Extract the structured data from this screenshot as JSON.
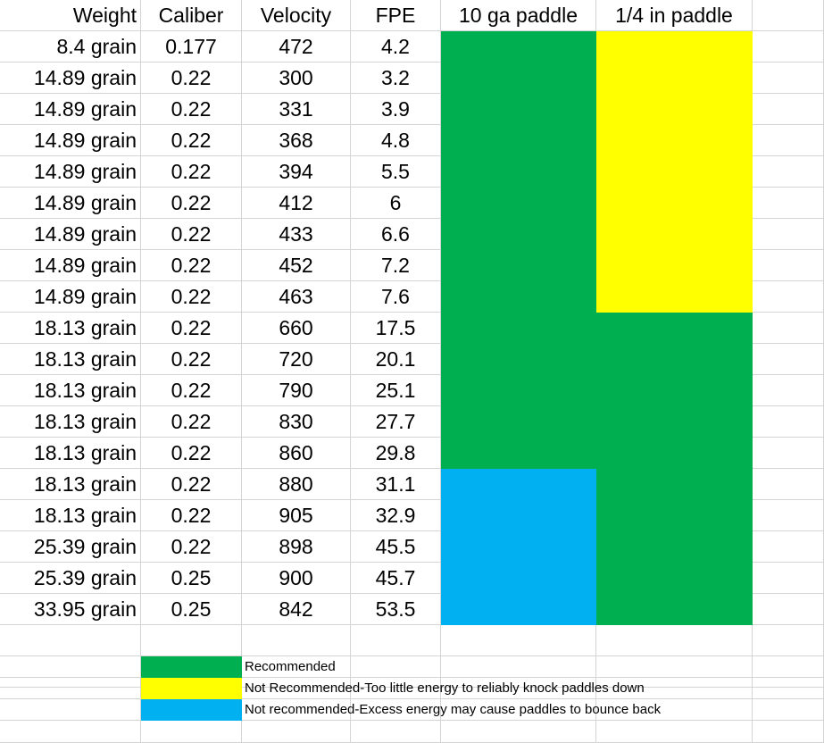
{
  "colors": {
    "green": "#00b050",
    "yellow": "#ffff00",
    "blue": "#00b0f0",
    "gridline": "#d4d4d4"
  },
  "headers": [
    "Weight",
    "Caliber",
    "Velocity",
    "FPE",
    "10 ga paddle",
    "1/4 in paddle"
  ],
  "rows": [
    {
      "weight": "8.4 grain",
      "caliber": "0.177",
      "velocity": "472",
      "fpe": "4.2",
      "ga10": "green",
      "in14": "yellow"
    },
    {
      "weight": "14.89 grain",
      "caliber": "0.22",
      "velocity": "300",
      "fpe": "3.2",
      "ga10": "green",
      "in14": "yellow"
    },
    {
      "weight": "14.89 grain",
      "caliber": "0.22",
      "velocity": "331",
      "fpe": "3.9",
      "ga10": "green",
      "in14": "yellow"
    },
    {
      "weight": "14.89 grain",
      "caliber": "0.22",
      "velocity": "368",
      "fpe": "4.8",
      "ga10": "green",
      "in14": "yellow"
    },
    {
      "weight": "14.89 grain",
      "caliber": "0.22",
      "velocity": "394",
      "fpe": "5.5",
      "ga10": "green",
      "in14": "yellow"
    },
    {
      "weight": "14.89 grain",
      "caliber": "0.22",
      "velocity": "412",
      "fpe": "6",
      "ga10": "green",
      "in14": "yellow"
    },
    {
      "weight": "14.89 grain",
      "caliber": "0.22",
      "velocity": "433",
      "fpe": "6.6",
      "ga10": "green",
      "in14": "yellow"
    },
    {
      "weight": "14.89 grain",
      "caliber": "0.22",
      "velocity": "452",
      "fpe": "7.2",
      "ga10": "green",
      "in14": "yellow"
    },
    {
      "weight": "14.89 grain",
      "caliber": "0.22",
      "velocity": "463",
      "fpe": "7.6",
      "ga10": "green",
      "in14": "yellow"
    },
    {
      "weight": "18.13 grain",
      "caliber": "0.22",
      "velocity": "660",
      "fpe": "17.5",
      "ga10": "green",
      "in14": "green"
    },
    {
      "weight": "18.13 grain",
      "caliber": "0.22",
      "velocity": "720",
      "fpe": "20.1",
      "ga10": "green",
      "in14": "green"
    },
    {
      "weight": "18.13 grain",
      "caliber": "0.22",
      "velocity": "790",
      "fpe": "25.1",
      "ga10": "green",
      "in14": "green"
    },
    {
      "weight": "18.13 grain",
      "caliber": "0.22",
      "velocity": "830",
      "fpe": "27.7",
      "ga10": "green",
      "in14": "green"
    },
    {
      "weight": "18.13 grain",
      "caliber": "0.22",
      "velocity": "860",
      "fpe": "29.8",
      "ga10": "green",
      "in14": "green"
    },
    {
      "weight": "18.13 grain",
      "caliber": "0.22",
      "velocity": "880",
      "fpe": "31.1",
      "ga10": "blue",
      "in14": "green"
    },
    {
      "weight": "18.13 grain",
      "caliber": "0.22",
      "velocity": "905",
      "fpe": "32.9",
      "ga10": "blue",
      "in14": "green"
    },
    {
      "weight": "25.39 grain",
      "caliber": "0.22",
      "velocity": "898",
      "fpe": "45.5",
      "ga10": "blue",
      "in14": "green"
    },
    {
      "weight": "25.39 grain",
      "caliber": "0.25",
      "velocity": "900",
      "fpe": "45.7",
      "ga10": "blue",
      "in14": "green"
    },
    {
      "weight": "33.95 grain",
      "caliber": "0.25",
      "velocity": "842",
      "fpe": "53.5",
      "ga10": "blue",
      "in14": "green"
    }
  ],
  "legend": [
    {
      "color": "green",
      "label": "Recommended"
    },
    {
      "color": "yellow",
      "label": "Not Recommended-Too little energy to reliably knock paddles down"
    },
    {
      "color": "blue",
      "label": "Not recommended-Excess energy may cause paddles to bounce back"
    }
  ]
}
